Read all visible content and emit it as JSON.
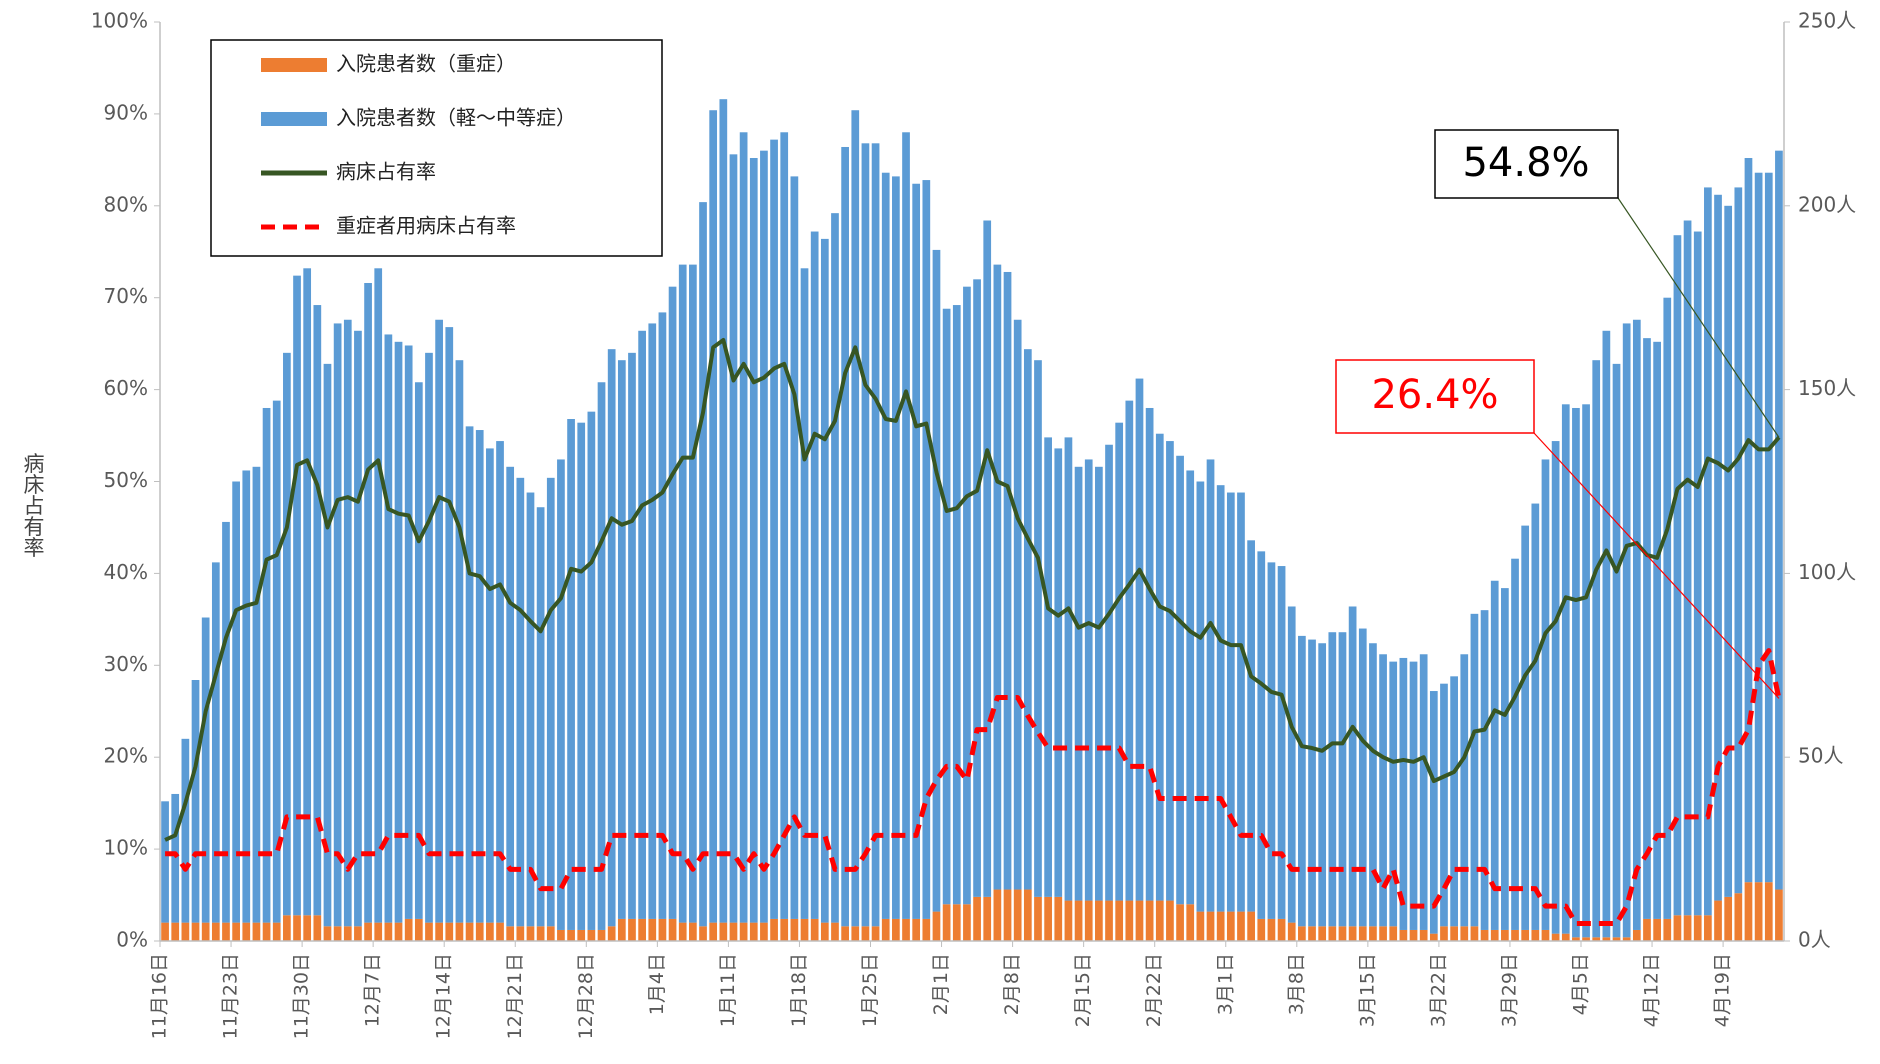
{
  "chart_data": {
    "type": "bar",
    "ylabel": "病床占有率",
    "categories": [
      "11月16日",
      null,
      null,
      null,
      null,
      null,
      null,
      "11月23日",
      null,
      null,
      null,
      null,
      null,
      null,
      "11月30日",
      null,
      null,
      null,
      null,
      null,
      null,
      "12月7日",
      null,
      null,
      null,
      null,
      null,
      null,
      "12月14日",
      null,
      null,
      null,
      null,
      null,
      null,
      "12月21日",
      null,
      null,
      null,
      null,
      null,
      null,
      "12月28日",
      null,
      null,
      null,
      null,
      null,
      null,
      "1月4日",
      null,
      null,
      null,
      null,
      null,
      null,
      "1月11日",
      null,
      null,
      null,
      null,
      null,
      null,
      "1月18日",
      null,
      null,
      null,
      null,
      null,
      null,
      "1月25日",
      null,
      null,
      null,
      null,
      null,
      null,
      "2月1日",
      null,
      null,
      null,
      null,
      null,
      null,
      "2月8日",
      null,
      null,
      null,
      null,
      null,
      null,
      "2月15日",
      null,
      null,
      null,
      null,
      null,
      null,
      "2月22日",
      null,
      null,
      null,
      null,
      null,
      null,
      "3月1日",
      null,
      null,
      null,
      null,
      null,
      null,
      "3月8日",
      null,
      null,
      null,
      null,
      null,
      null,
      "3月15日",
      null,
      null,
      null,
      null,
      null,
      null,
      "3月22日",
      null,
      null,
      null,
      null,
      null,
      null,
      "3月29日",
      null,
      null,
      null,
      null,
      null,
      null,
      "4月5日",
      null,
      null,
      null,
      null,
      null,
      null,
      "4月12日",
      null,
      null,
      null,
      null,
      null,
      null,
      "4月19日",
      null,
      null,
      null,
      null,
      null
    ],
    "series": [
      {
        "name": "入院患者数（重症）",
        "type": "bar",
        "axis": "y2",
        "color": "#ed7d31",
        "values": [
          5,
          5,
          5,
          5,
          5,
          5,
          5,
          5,
          5,
          5,
          5,
          5,
          7,
          7,
          7,
          7,
          4,
          4,
          4,
          4,
          5,
          5,
          5,
          5,
          6,
          6,
          5,
          5,
          5,
          5,
          5,
          5,
          5,
          5,
          4,
          4,
          4,
          4,
          4,
          3,
          3,
          3,
          3,
          3,
          4,
          6,
          6,
          6,
          6,
          6,
          6,
          5,
          5,
          4,
          5,
          5,
          5,
          5,
          5,
          5,
          6,
          6,
          6,
          6,
          6,
          5,
          5,
          4,
          4,
          4,
          4,
          6,
          6,
          6,
          6,
          6,
          8,
          10,
          10,
          10,
          12,
          12,
          14,
          14,
          14,
          14,
          12,
          12,
          12,
          11,
          11,
          11,
          11,
          11,
          11,
          11,
          11,
          11,
          11,
          11,
          10,
          10,
          8,
          8,
          8,
          8,
          8,
          8,
          6,
          6,
          6,
          5,
          4,
          4,
          4,
          4,
          4,
          4,
          4,
          4,
          4,
          4,
          3,
          3,
          3,
          2,
          4,
          4,
          4,
          4,
          3,
          3,
          3,
          3,
          3,
          3,
          3,
          2,
          2,
          1,
          1,
          1,
          1,
          1,
          1,
          3,
          6,
          6,
          6,
          7,
          7,
          7,
          7,
          11,
          12,
          13,
          16,
          16,
          16,
          14
        ]
      },
      {
        "name": "入院患者数（軽～中等症）",
        "type": "bar",
        "axis": "y2",
        "color": "#5b9bd5",
        "values": [
          33,
          35,
          50,
          66,
          83,
          98,
          109,
          120,
          123,
          124,
          140,
          142,
          153,
          174,
          176,
          166,
          153,
          164,
          165,
          162,
          174,
          178,
          160,
          158,
          156,
          146,
          155,
          164,
          162,
          153,
          135,
          134,
          129,
          131,
          125,
          122,
          118,
          114,
          122,
          128,
          139,
          138,
          141,
          149,
          157,
          152,
          154,
          160,
          162,
          165,
          172,
          179,
          179,
          197,
          221,
          224,
          209,
          215,
          208,
          210,
          212,
          214,
          202,
          177,
          187,
          186,
          193,
          212,
          222,
          213,
          213,
          203,
          202,
          214,
          200,
          201,
          180,
          162,
          163,
          168,
          168,
          184,
          170,
          168,
          155,
          147,
          146,
          125,
          122,
          126,
          118,
          120,
          118,
          124,
          130,
          136,
          142,
          134,
          127,
          125,
          122,
          118,
          117,
          123,
          116,
          114,
          114,
          101,
          100,
          97,
          96,
          86,
          79,
          78,
          77,
          80,
          80,
          87,
          81,
          77,
          74,
          72,
          74,
          73,
          75,
          66,
          66,
          68,
          74,
          85,
          87,
          95,
          93,
          101,
          110,
          116,
          128,
          134,
          144,
          144,
          145,
          157,
          165,
          156,
          167,
          166,
          158,
          157,
          169,
          185,
          189,
          186,
          198,
          192,
          188,
          192,
          197,
          193,
          193,
          201
        ]
      },
      {
        "name": "病床占有率",
        "type": "line",
        "axis": "y",
        "color": "#375623",
        "style": "solid",
        "values": [
          11,
          11.5,
          15,
          19,
          25,
          29,
          33,
          36,
          36.5,
          36.8,
          41.5,
          42,
          45,
          51.8,
          52.3,
          49.6,
          45,
          48,
          48.3,
          47.8,
          51.3,
          52.3,
          47,
          46.5,
          46.3,
          43.5,
          45.7,
          48.3,
          47.8,
          45,
          40,
          39.7,
          38.3,
          38.8,
          36.8,
          36,
          34.8,
          33.7,
          36,
          37.3,
          40.5,
          40.2,
          41.2,
          43.5,
          46,
          45.3,
          45.7,
          47.4,
          48,
          48.8,
          50.8,
          52.6,
          52.6,
          57.5,
          64.6,
          65.4,
          61,
          62.8,
          60.8,
          61.3,
          62.3,
          62.8,
          59.5,
          52.4,
          55.2,
          54.6,
          56.6,
          61.8,
          64.6,
          60.5,
          59,
          56.8,
          56.6,
          59.8,
          56,
          56.3,
          51,
          46.8,
          47.1,
          48.4,
          49,
          53.4,
          50,
          49.5,
          46,
          43.8,
          41.7,
          36.2,
          35.4,
          36.2,
          34.1,
          34.6,
          34.1,
          35.6,
          37.3,
          38.8,
          40.4,
          38.3,
          36.4,
          35.9,
          34.8,
          33.7,
          33,
          34.6,
          32.7,
          32.2,
          32.2,
          28.8,
          28,
          27.1,
          26.8,
          23.3,
          21.2,
          21,
          20.7,
          21.5,
          21.5,
          23.3,
          21.8,
          20.7,
          20,
          19.5,
          19.7,
          19.5,
          20,
          17.4,
          17.9,
          18.4,
          20,
          22.8,
          23,
          25.1,
          24.6,
          26.6,
          28.9,
          30.5,
          33.5,
          34.8,
          37.4,
          37.1,
          37.4,
          40.4,
          42.5,
          40.2,
          43,
          43.3,
          42,
          41.7,
          44.8,
          49.2,
          50.2,
          49.4,
          52.5,
          52,
          51.2,
          52.5,
          54.5,
          53.5,
          53.5,
          54.8
        ]
      },
      {
        "name": "重症者用病床占有率",
        "type": "line",
        "axis": "y",
        "color": "#ff0000",
        "style": "dashed",
        "values": [
          9.5,
          9.5,
          7.8,
          9.5,
          9.5,
          9.5,
          9.5,
          9.5,
          9.5,
          9.5,
          9.5,
          9.5,
          13.5,
          13.5,
          13.5,
          13.5,
          9.5,
          9.5,
          7.8,
          9.5,
          9.5,
          9.5,
          11.5,
          11.5,
          11.5,
          11.5,
          9.5,
          9.5,
          9.5,
          9.5,
          9.5,
          9.5,
          9.5,
          9.5,
          7.8,
          7.8,
          7.8,
          5.7,
          5.7,
          5.7,
          7.8,
          7.8,
          7.8,
          7.8,
          11.5,
          11.5,
          11.5,
          11.5,
          11.5,
          11.5,
          9.5,
          9.5,
          7.8,
          9.5,
          9.5,
          9.5,
          9.5,
          7.8,
          9.5,
          7.8,
          9.5,
          11.5,
          13.5,
          11.5,
          11.5,
          11.5,
          7.8,
          7.8,
          7.8,
          9.5,
          11.5,
          11.5,
          11.5,
          11.5,
          11.5,
          15.5,
          17.5,
          19,
          19,
          17.5,
          23,
          23,
          26.5,
          26.5,
          26.5,
          24.5,
          22.7,
          21,
          21,
          21,
          21,
          21,
          21,
          21,
          21,
          19,
          19,
          19,
          15.5,
          15.5,
          15.5,
          15.5,
          15.5,
          15.5,
          15.5,
          13.5,
          11.5,
          11.5,
          11.5,
          9.5,
          9.5,
          7.8,
          7.8,
          7.8,
          7.8,
          7.8,
          7.8,
          7.8,
          7.8,
          7.8,
          5.7,
          7.8,
          3.8,
          3.8,
          3.8,
          3.8,
          5.7,
          7.8,
          7.8,
          7.8,
          7.8,
          5.7,
          5.7,
          5.7,
          5.7,
          5.7,
          3.8,
          3.8,
          3.8,
          1.9,
          1.9,
          1.9,
          1.9,
          1.9,
          3.8,
          7.8,
          9.5,
          11.5,
          11.5,
          13.5,
          13.5,
          13.5,
          13.5,
          19,
          21,
          21,
          23,
          30,
          31.6,
          26.4
        ]
      }
    ],
    "ylim": [
      0,
      100
    ],
    "yticks": [
      {
        "value": 0,
        "label": "0%"
      },
      {
        "value": 10,
        "label": "10%"
      },
      {
        "value": 20,
        "label": "20%"
      },
      {
        "value": 30,
        "label": "30%"
      },
      {
        "value": 40,
        "label": "40%"
      },
      {
        "value": 50,
        "label": "50%"
      },
      {
        "value": 60,
        "label": "60%"
      },
      {
        "value": 70,
        "label": "70%"
      },
      {
        "value": 80,
        "label": "80%"
      },
      {
        "value": 90,
        "label": "90%"
      },
      {
        "value": 100,
        "label": "100%"
      }
    ],
    "y2lim": [
      0,
      250
    ],
    "y2ticks": [
      {
        "value": 0,
        "label": "0人"
      },
      {
        "value": 50,
        "label": "50人"
      },
      {
        "value": 100,
        "label": "100人"
      },
      {
        "value": 150,
        "label": "150人"
      },
      {
        "value": 200,
        "label": "200人"
      },
      {
        "value": 250,
        "label": "250人"
      }
    ],
    "grid": false,
    "legend": "upper left",
    "annotations": [
      "54.8%",
      "26.4%"
    ]
  }
}
